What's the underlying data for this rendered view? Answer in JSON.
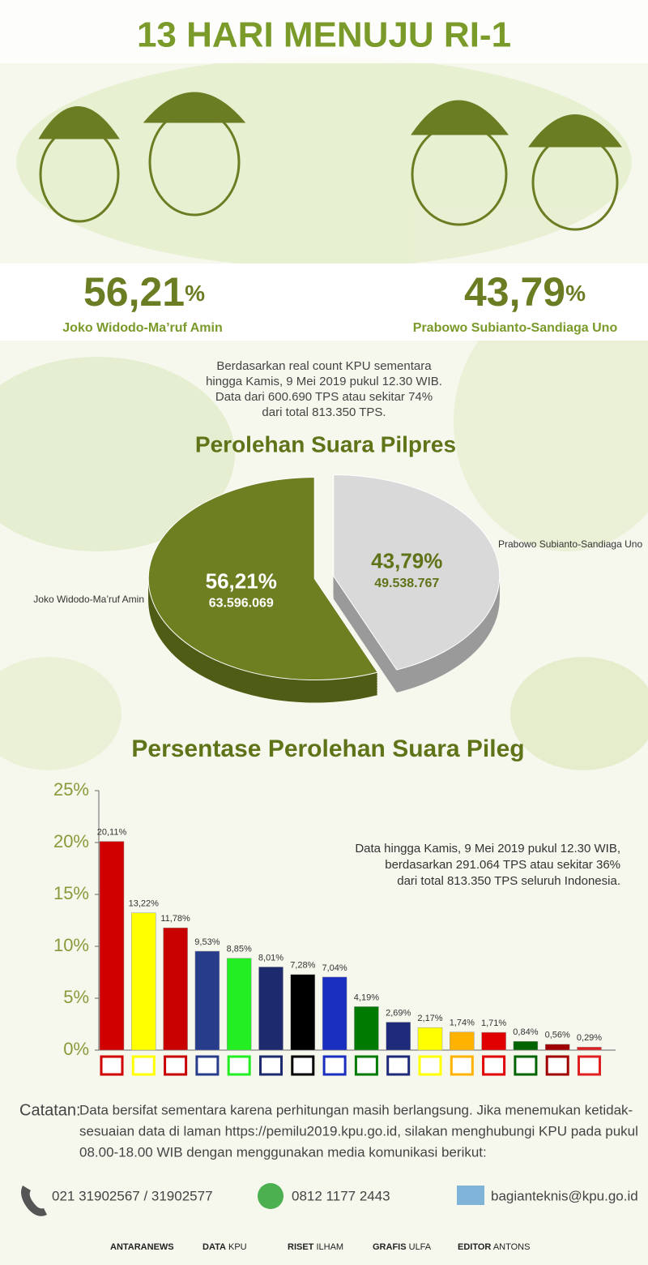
{
  "header": {
    "title": "13 HARI MENUJU RI-1"
  },
  "candidates": [
    {
      "percent": "56,21",
      "sign": "%",
      "name": "Joko Widodo-Ma’ruf Amin"
    },
    {
      "percent": "43,79",
      "sign": "%",
      "name": "Prabowo Subianto-Sandiaga Uno"
    }
  ],
  "summary": [
    "Berdasarkan real count KPU sementara",
    "hingga Kamis, 9 Mei 2019 pukul 12.30 WIB.",
    "Data dari 600.690 TPS atau sekitar 74%",
    "dari total 813.350 TPS."
  ],
  "chart_data": [
    {
      "type": "pie",
      "title": "Perolehan Suara Pilpres",
      "categories": [
        "Joko Widodo-Ma’ruf Amin",
        "Prabowo Subianto-Sandiaga Uno"
      ],
      "values": [
        56.21,
        43.79
      ],
      "value_labels": [
        "56,21%",
        "43,79%"
      ],
      "votes": [
        63596069,
        49538767
      ],
      "vote_labels": [
        "63.596.069",
        "49.538.767"
      ],
      "colors": [
        "#6e7f22",
        "#d9d9d9"
      ]
    },
    {
      "type": "bar",
      "title": "Persentase Perolehan Suara Pileg",
      "categories": [
        null,
        null,
        null,
        null,
        null,
        null,
        null,
        null,
        null,
        null,
        null,
        null,
        null,
        null,
        null,
        null
      ],
      "values": [
        20.11,
        13.22,
        11.78,
        9.53,
        8.85,
        8.01,
        7.28,
        7.04,
        4.19,
        2.69,
        2.17,
        1.74,
        1.71,
        0.84,
        0.56,
        0.29
      ],
      "value_labels": [
        "20,11%",
        "13,22%",
        "11,78%",
        "9,53%",
        "8,85%",
        "8,01%",
        "7,28%",
        "7,04%",
        "4,19%",
        "2,69%",
        "2,17%",
        "1,74%",
        "1,71%",
        "0,84%",
        "0,56%",
        "0,29%"
      ],
      "colors": [
        "#d00000",
        "#ffff00",
        "#c80000",
        "#283c8c",
        "#22ee22",
        "#1e2a6e",
        "#000000",
        "#1a2ebf",
        "#007a00",
        "#1e2a7a",
        "#ffff00",
        "#ffb300",
        "#e00000",
        "#006400",
        "#a00000",
        "#e02020"
      ],
      "ylim": [
        0,
        25
      ],
      "yticks": [
        {
          "value": 0,
          "label": "0%"
        },
        {
          "value": 5,
          "label": "5%"
        },
        {
          "value": 10,
          "label": "10%"
        },
        {
          "value": 15,
          "label": "15%"
        },
        {
          "value": 20,
          "label": "20%"
        },
        {
          "value": 25,
          "label": "25%"
        }
      ],
      "annotation": [
        "Data hingga Kamis, 9 Mei 2019 pukul 12.30 WIB,",
        "berdasarkan 291.064 TPS atau sekitar 36%",
        "dari total 813.350 TPS seluruh Indonesia."
      ]
    }
  ],
  "note": {
    "label": "Catatan:",
    "lines": [
      "Data bersifat sementara karena perhitungan masih berlangsung. Jika menemukan ketidak-",
      "sesuaian data di laman https://pemilu2019.kpu.go.id, silakan menghubungi KPU pada pukul",
      "08.00-18.00 WIB dengan menggunakan media komunikasi berikut:"
    ]
  },
  "contacts": {
    "phone": "021 31902567 / 31902577",
    "whatsapp": "0812 1177 2443",
    "email": "bagianteknis@kpu.go.id"
  },
  "credits": {
    "brand": "ANTARANEWS",
    "items": [
      {
        "role": "DATA",
        "name": "KPU"
      },
      {
        "role": "RISET",
        "name": "ILHAM"
      },
      {
        "role": "GRAFIS",
        "name": "ULFA"
      },
      {
        "role": "EDITOR",
        "name": "ANTONS"
      }
    ]
  }
}
